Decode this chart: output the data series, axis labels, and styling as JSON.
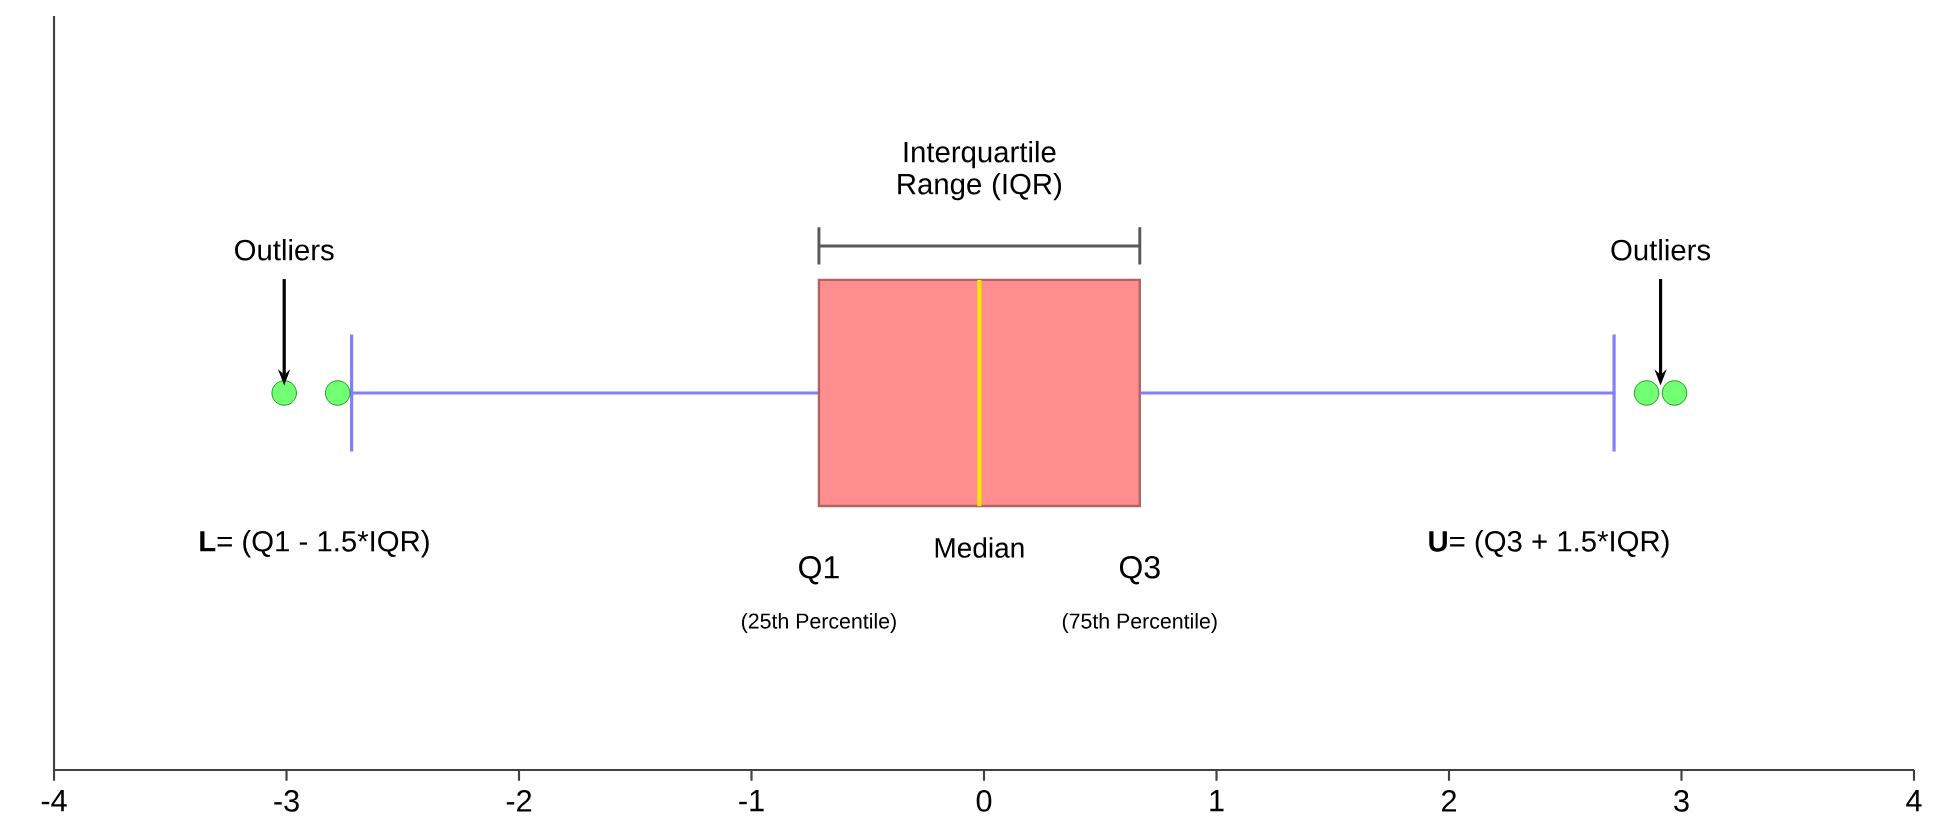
{
  "chart_data": {
    "type": "box",
    "orientation": "horizontal",
    "categories": [
      null
    ],
    "tick_labels": "x",
    "xlim": [
      -4,
      4
    ],
    "xticks": [
      -4,
      -3,
      -2,
      -1,
      0,
      1,
      2,
      3,
      4
    ],
    "series": [
      {
        "color": "#ff8f8f",
        "boxes": [
          {
            "low": -2.72,
            "q1": -0.71,
            "median": -0.02,
            "q3": 0.67,
            "high": 2.71,
            "outliers": [
              -3.01,
              -2.78,
              2.85,
              2.97
            ]
          }
        ]
      }
    ],
    "annotations": [
      "Interquartile Range (IQR)",
      "Outliers",
      "Outliers",
      "**L**= (Q1 - 1.5*IQR)",
      "**U**= (Q3 + 1.5*IQR)",
      "Q1",
      "Median",
      "Q3",
      "(25th Percentile)",
      "(75th Percentile)"
    ]
  }
}
